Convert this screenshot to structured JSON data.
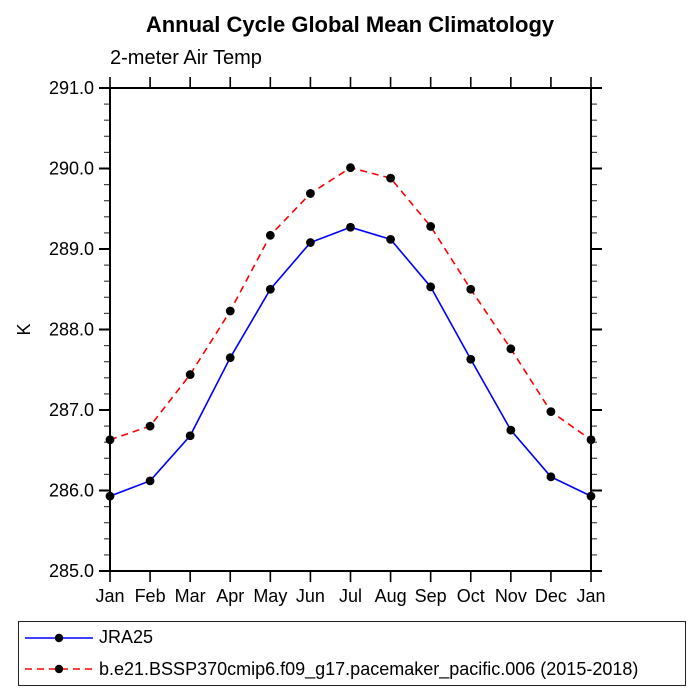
{
  "chart_data": {
    "type": "line",
    "title": "Annual Cycle Global Mean Climatology",
    "subtitle": "2-meter Air Temp",
    "ylabel": "K",
    "xlabel": "",
    "ylim": [
      285.0,
      291.0
    ],
    "ytick_labels": [
      "291.0",
      "290.0",
      "289.0",
      "288.0",
      "287.0",
      "286.0",
      "285.0"
    ],
    "yminor_interval": 0.2,
    "grid": false,
    "legend_position": "bottom-box",
    "x": [
      "Jan",
      "Feb",
      "Mar",
      "Apr",
      "May",
      "Jun",
      "Jul",
      "Aug",
      "Sep",
      "Oct",
      "Nov",
      "Dec",
      "Jan"
    ],
    "series": [
      {
        "name": "JRA25",
        "line_color": "#0000ff",
        "line_style": "solid",
        "marker": "filled-circle",
        "marker_color": "#000000",
        "values": [
          285.93,
          286.12,
          286.68,
          287.65,
          288.5,
          289.08,
          289.27,
          289.12,
          288.53,
          287.63,
          286.75,
          286.17,
          285.93
        ]
      },
      {
        "name": "b.e21.BSSP370cmip6.f09_g17.pacemaker_pacific.006 (2015-2018)",
        "line_color": "#ff0000",
        "line_style": "dashed",
        "marker": "filled-circle",
        "marker_color": "#000000",
        "values": [
          286.63,
          286.8,
          287.44,
          288.23,
          289.17,
          289.69,
          290.01,
          289.88,
          289.28,
          288.5,
          287.76,
          286.98,
          286.63
        ]
      }
    ]
  }
}
